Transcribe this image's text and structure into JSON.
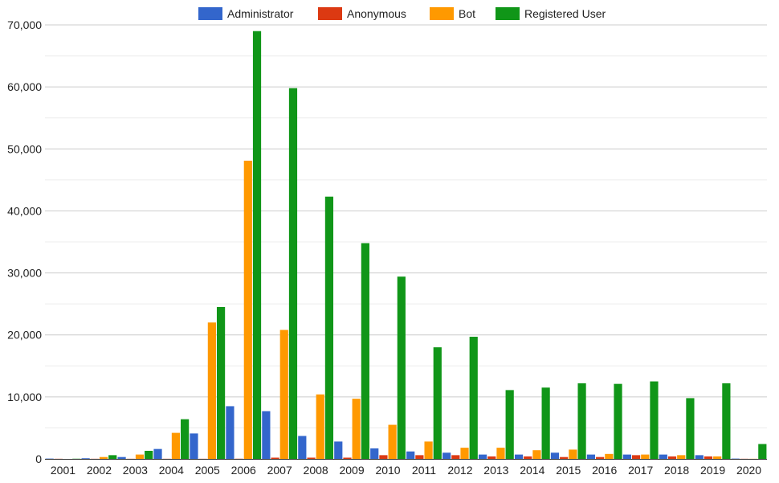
{
  "chart_data": {
    "type": "bar",
    "title": "",
    "xlabel": "",
    "ylabel": "",
    "legend_position": "top",
    "grid": true,
    "ylim": [
      0,
      70000
    ],
    "y_ticks": [
      "0",
      "10,000",
      "20,000",
      "30,000",
      "40,000",
      "50,000",
      "60,000",
      "70,000"
    ],
    "categories": [
      "2001",
      "2002",
      "2003",
      "2004",
      "2005",
      "2006",
      "2007",
      "2008",
      "2009",
      "2010",
      "2011",
      "2012",
      "2013",
      "2014",
      "2015",
      "2016",
      "2017",
      "2018",
      "2019",
      "2020"
    ],
    "series": [
      {
        "name": "Administrator",
        "color": "#3366cc",
        "values": [
          50,
          100,
          300,
          1600,
          4100,
          8500,
          7700,
          3700,
          2800,
          1700,
          1200,
          1000,
          700,
          700,
          1000,
          700,
          700,
          700,
          600,
          50
        ]
      },
      {
        "name": "Anonymous",
        "color": "#dc3912",
        "values": [
          20,
          20,
          20,
          20,
          20,
          30,
          200,
          200,
          200,
          600,
          600,
          600,
          400,
          400,
          300,
          300,
          600,
          400,
          400,
          20
        ]
      },
      {
        "name": "Bot",
        "color": "#ff9900",
        "values": [
          0,
          300,
          700,
          4200,
          22000,
          48100,
          20800,
          10400,
          9700,
          5500,
          2800,
          1800,
          1800,
          1400,
          1500,
          800,
          700,
          600,
          400,
          20
        ]
      },
      {
        "name": "Registered User",
        "color": "#109618",
        "values": [
          30,
          600,
          1300,
          6400,
          24500,
          69000,
          59800,
          42300,
          34800,
          29400,
          18000,
          19700,
          11100,
          11500,
          12200,
          12100,
          12500,
          9800,
          12200,
          2400
        ]
      }
    ]
  }
}
